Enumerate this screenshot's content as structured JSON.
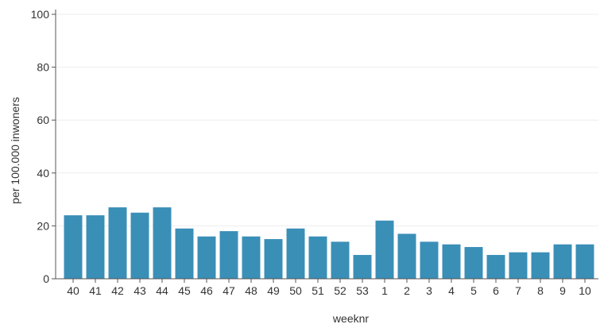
{
  "chart_data": {
    "type": "bar",
    "title": "",
    "xlabel": "weeknr",
    "ylabel": "per 100.000 inwoners",
    "categories": [
      "40",
      "41",
      "42",
      "43",
      "44",
      "45",
      "46",
      "47",
      "48",
      "49",
      "50",
      "51",
      "52",
      "53",
      "1",
      "2",
      "3",
      "4",
      "5",
      "6",
      "7",
      "8",
      "9",
      "10"
    ],
    "values": [
      24,
      24,
      27,
      25,
      27,
      19,
      16,
      18,
      16,
      15,
      19,
      16,
      14,
      9,
      22,
      17,
      14,
      13,
      12,
      9,
      10,
      10,
      13,
      13
    ],
    "ylim": [
      0,
      100
    ],
    "yticks": [
      0,
      20,
      40,
      60,
      80,
      100
    ],
    "grid": true,
    "bar_color": "#3a8fb7"
  }
}
